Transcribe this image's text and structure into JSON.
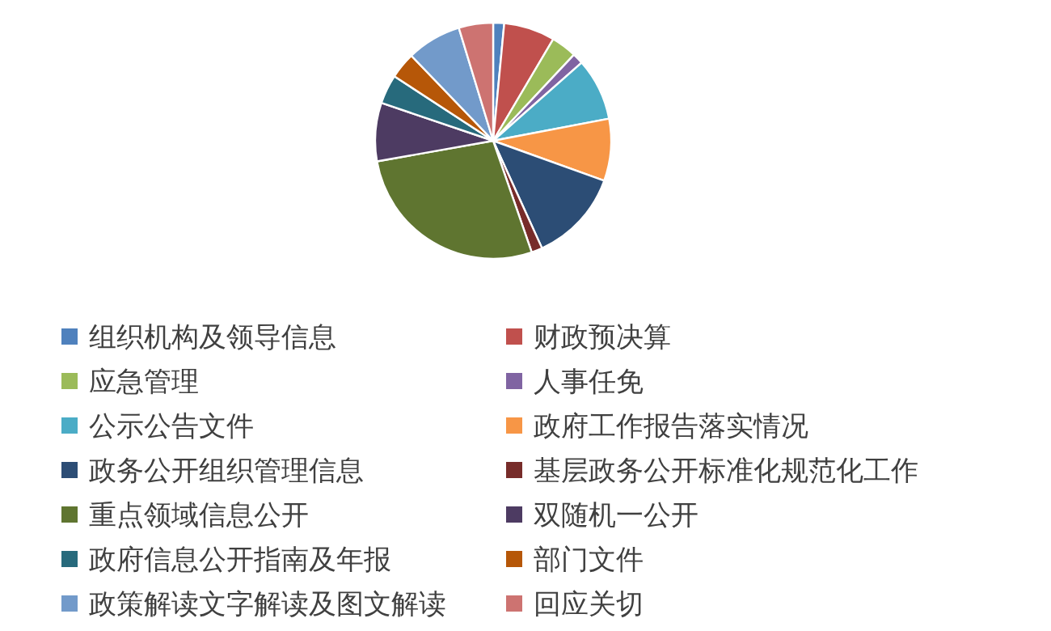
{
  "chart_data": {
    "type": "pie",
    "legend": "bottom",
    "categories": [
      "组织机构及领导信息",
      "财政预决算",
      "应急管理",
      "人事任免",
      "公示公告文件",
      "政府工作报告落实情况",
      "政务公开组织管理信息",
      "基层政务公开标准化规范化工作",
      "重点领域信息公开",
      "双随机一公开",
      "政府信息公开指南及年报",
      "部门文件",
      "政策解读文字解读及图文解读",
      "回应关切"
    ],
    "values": [
      1.5,
      7,
      3.5,
      1.5,
      8.5,
      8.5,
      12.7,
      1.5,
      27.5,
      8,
      4,
      3.6,
      7.5,
      4.7
    ],
    "colors": [
      "#4f81bd",
      "#c0504d",
      "#9bbb59",
      "#8064a2",
      "#4bacc6",
      "#f79646",
      "#2c4d75",
      "#772c2a",
      "#5f7530",
      "#4d3b62",
      "#276a7c",
      "#b65708",
      "#729aca",
      "#cd7371"
    ]
  }
}
